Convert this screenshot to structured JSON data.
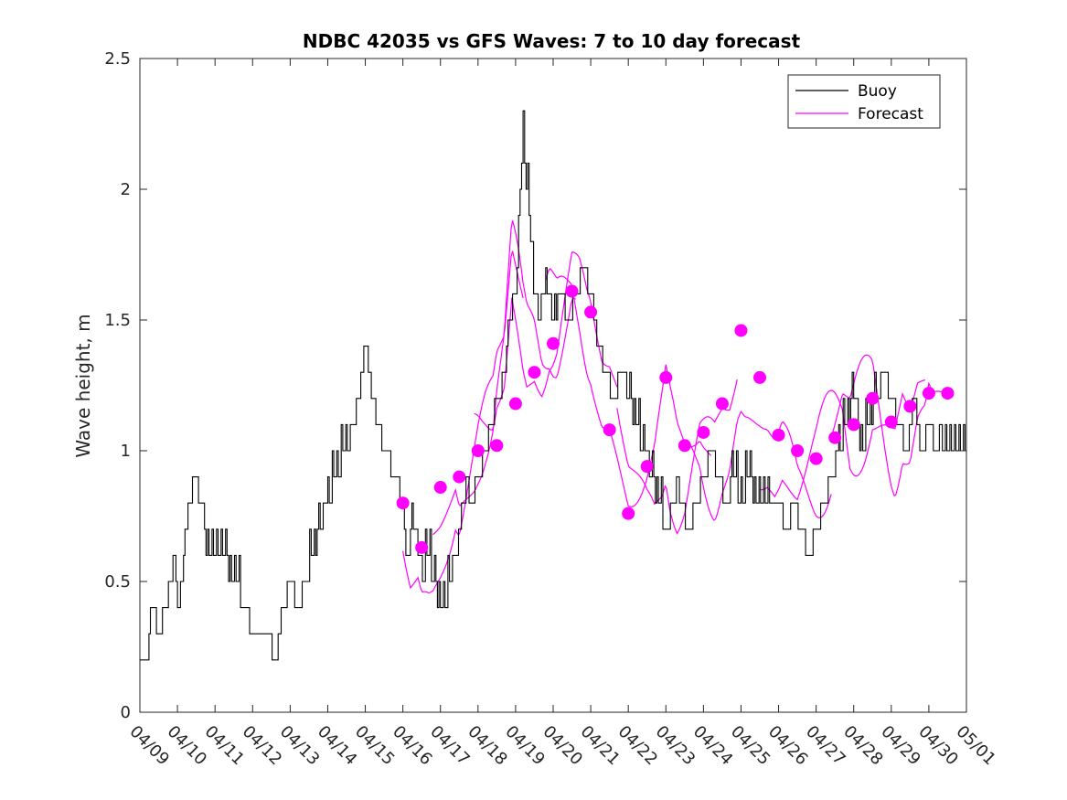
{
  "chart_data": {
    "type": "line",
    "title": "NDBC 42035 vs GFS Waves: 7 to 10 day forecast",
    "xlabel": "",
    "ylabel": "Wave height, m",
    "ylim": [
      0,
      2.5
    ],
    "yticks": [
      "0",
      "0.5",
      "1",
      "1.5",
      "2",
      "2.5"
    ],
    "xlim": [
      "04/09",
      "05/01"
    ],
    "xticks": [
      "04/09",
      "04/10",
      "04/11",
      "04/12",
      "04/13",
      "04/14",
      "04/15",
      "04/16",
      "04/17",
      "04/18",
      "04/19",
      "04/20",
      "04/21",
      "04/22",
      "04/23",
      "04/24",
      "04/25",
      "04/26",
      "04/27",
      "04/28",
      "04/29",
      "04/30",
      "05/01"
    ],
    "grid": false,
    "legend": {
      "placement": "top-right",
      "entries": [
        "Buoy",
        "Forecast"
      ]
    },
    "colors": {
      "buoy": "#000000",
      "forecast": "#ff00ff"
    },
    "series": [
      {
        "name": "Buoy",
        "x_days_from": "04/09",
        "x": [
          0,
          0.2,
          0.25,
          0.3,
          0.5,
          0.7,
          0.8,
          0.9,
          1.0,
          1.1,
          1.2,
          1.3,
          1.5,
          1.6,
          1.8,
          2.0,
          2.2,
          2.5,
          2.8,
          3.0,
          3.3,
          3.4,
          3.6,
          3.8,
          4.0,
          4.2,
          4.4,
          4.6,
          4.8,
          5.0,
          5.2,
          5.5,
          5.8,
          6.0,
          6.2,
          6.5,
          6.8,
          7.0,
          7.1,
          7.3,
          7.5,
          7.7,
          7.8,
          8.0,
          8.1,
          8.3,
          8.5,
          8.7,
          8.8,
          9.0,
          9.2,
          9.35,
          9.5,
          9.7,
          9.8,
          10.0,
          10.2,
          10.4,
          10.5,
          10.6,
          10.8,
          11.0,
          11.2,
          11.4,
          11.6,
          11.8,
          12.0,
          12.1,
          12.2,
          12.4,
          12.6,
          12.8,
          13.0,
          13.2,
          13.4,
          13.6,
          13.8,
          14.0,
          14.2,
          14.3,
          14.4,
          14.6,
          14.8,
          15.0,
          15.2,
          15.4,
          15.6,
          15.8,
          16.0,
          16.2,
          16.4,
          16.6,
          16.8,
          17.0,
          17.2,
          17.4,
          17.6,
          17.8,
          18.0,
          18.2,
          18.4,
          18.6,
          18.8,
          19.0,
          19.1,
          19.2,
          19.4,
          19.6,
          19.8,
          20.0,
          20.2,
          20.4,
          20.5,
          20.6,
          20.8,
          21.0,
          21.2,
          21.3,
          21.4,
          21.6,
          21.8,
          22.0
        ],
        "values": [
          0.2,
          0.2,
          0.3,
          0.4,
          0.3,
          0.4,
          0.5,
          0.6,
          0.4,
          0.5,
          0.7,
          0.8,
          0.9,
          0.8,
          0.6,
          0.6,
          0.6,
          0.5,
          0.4,
          0.3,
          0.3,
          0.3,
          0.2,
          0.4,
          0.5,
          0.4,
          0.5,
          0.6,
          0.7,
          0.8,
          0.9,
          1.0,
          1.2,
          1.4,
          1.2,
          1.0,
          0.9,
          0.8,
          0.6,
          0.7,
          0.5,
          0.6,
          0.5,
          0.4,
          0.4,
          0.5,
          0.7,
          0.9,
          0.8,
          0.9,
          1.0,
          1.1,
          1.2,
          1.3,
          1.5,
          1.6,
          2.2,
          1.8,
          1.6,
          1.5,
          1.6,
          1.5,
          1.6,
          1.5,
          1.6,
          1.7,
          1.6,
          1.5,
          1.4,
          1.3,
          1.2,
          1.3,
          1.2,
          1.1,
          1.0,
          0.9,
          0.8,
          0.7,
          0.8,
          0.9,
          0.8,
          0.7,
          0.8,
          0.9,
          1.0,
          0.9,
          0.8,
          0.9,
          0.8,
          0.9,
          0.8,
          0.8,
          0.8,
          0.8,
          0.7,
          0.8,
          0.7,
          0.6,
          0.7,
          0.8,
          0.9,
          1.0,
          1.1,
          1.2,
          1.1,
          1.0,
          1.1,
          1.2,
          1.3,
          1.2,
          1.1,
          1.0,
          1.1,
          1.2,
          1.0,
          1.1,
          1.0,
          1.1,
          1.0,
          1.0,
          1.0,
          1.0
        ]
      },
      {
        "name": "Forecast",
        "x_days_from": "04/09",
        "x": [
          7.0,
          7.5,
          8.0,
          8.5,
          9.0,
          9.5,
          10.0,
          10.5,
          11.0,
          11.5,
          12.0,
          12.5,
          13.0,
          13.5,
          14.0,
          14.5,
          15.0,
          15.5,
          16.0,
          16.5,
          17.0,
          17.5,
          18.0,
          18.5,
          19.0,
          19.5,
          20.0,
          20.5,
          21.0,
          21.5
        ],
        "values": [
          0.8,
          0.63,
          0.86,
          0.9,
          1.0,
          1.02,
          1.18,
          1.3,
          1.41,
          1.61,
          1.53,
          1.08,
          0.76,
          0.94,
          1.28,
          1.02,
          1.07,
          1.18,
          1.46,
          1.28,
          1.06,
          1.0,
          0.97,
          1.05,
          1.1,
          1.2,
          1.11,
          1.17,
          1.22,
          1.22
        ]
      }
    ]
  }
}
